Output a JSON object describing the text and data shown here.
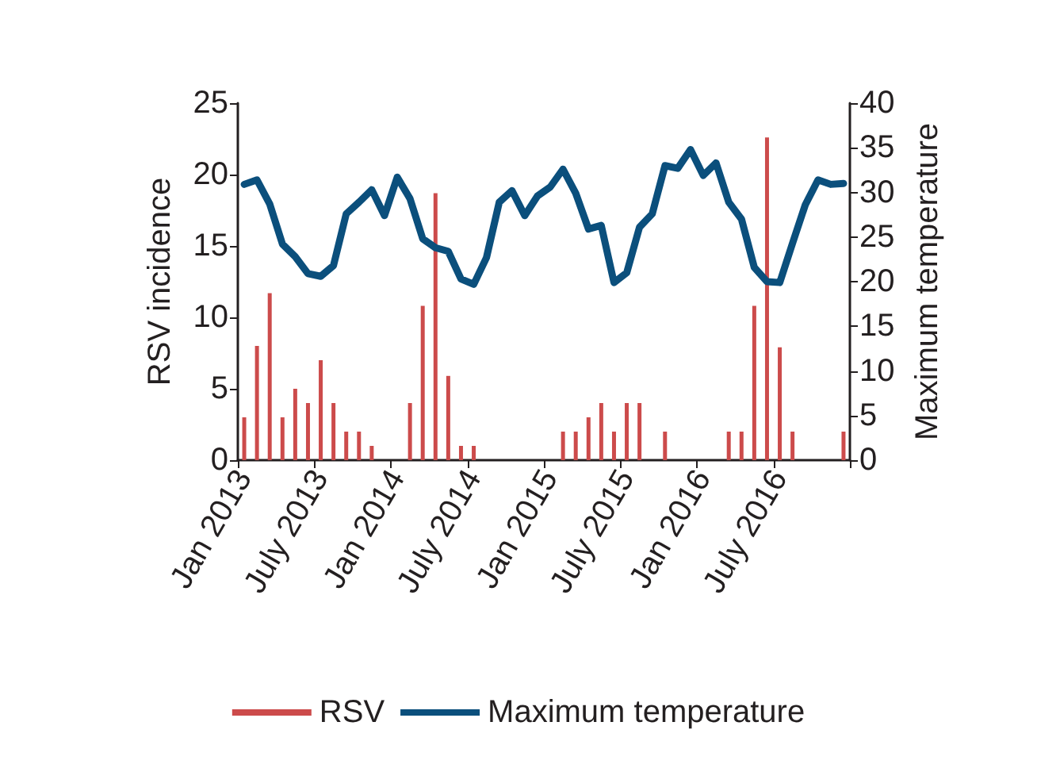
{
  "chart_data": {
    "type": "bar",
    "ylabel": "RSV incidence",
    "y2label": "Maximum temperature",
    "categories": [
      "Jan 2013",
      null,
      null,
      null,
      null,
      null,
      "July 2013",
      null,
      null,
      null,
      null,
      null,
      "Jan 2014",
      null,
      null,
      null,
      null,
      null,
      "July 2014",
      null,
      null,
      null,
      null,
      null,
      "Jan 2015",
      null,
      null,
      null,
      null,
      null,
      "July 2015",
      null,
      null,
      null,
      null,
      null,
      "Jan 2016",
      null,
      null,
      null,
      null,
      null,
      "July 2016",
      null,
      null,
      null,
      null,
      null
    ],
    "series": [
      {
        "name": "RSV",
        "color": "#cc4b4b",
        "values": [
          3,
          8,
          11.7,
          3,
          5,
          4,
          7,
          4,
          2,
          2,
          1,
          null,
          null,
          4,
          10.8,
          18.7,
          5.9,
          1,
          1,
          null,
          null,
          null,
          null,
          null,
          null,
          2,
          2,
          3,
          4,
          2,
          4,
          4,
          null,
          2,
          null,
          null,
          null,
          null,
          2,
          2,
          10.8,
          22.6,
          7.9,
          2,
          null,
          null,
          null,
          2
        ]
      },
      {
        "name": "Maximum temperature",
        "type": "line",
        "axis": "y2",
        "color": "#0b4f7c",
        "values": [
          30.9,
          31.4,
          28.7,
          24.2,
          22.8,
          20.9,
          20.6,
          21.8,
          27.6,
          28.9,
          30.3,
          27.4,
          31.7,
          29.3,
          24.8,
          23.8,
          23.4,
          20.3,
          19.7,
          22.7,
          28.9,
          30.2,
          27.4,
          29.6,
          30.6,
          32.6,
          29.9,
          25.9,
          26.3,
          19.9,
          21.0,
          26.1,
          27.6,
          33.0,
          32.7,
          34.8,
          31.9,
          33.3,
          28.9,
          27.0,
          21.6,
          20.0,
          19.9,
          24.3,
          28.6,
          31.4,
          30.9,
          31.0
        ]
      }
    ],
    "ylim": [
      0,
      25
    ],
    "yticks": [
      0,
      5,
      10,
      15,
      20,
      25
    ],
    "y2lim": [
      0,
      40
    ],
    "y2ticks": [
      0,
      5,
      10,
      15,
      20,
      25,
      30,
      35,
      40
    ],
    "legend": "bottom",
    "marker": "none",
    "grid": false
  }
}
